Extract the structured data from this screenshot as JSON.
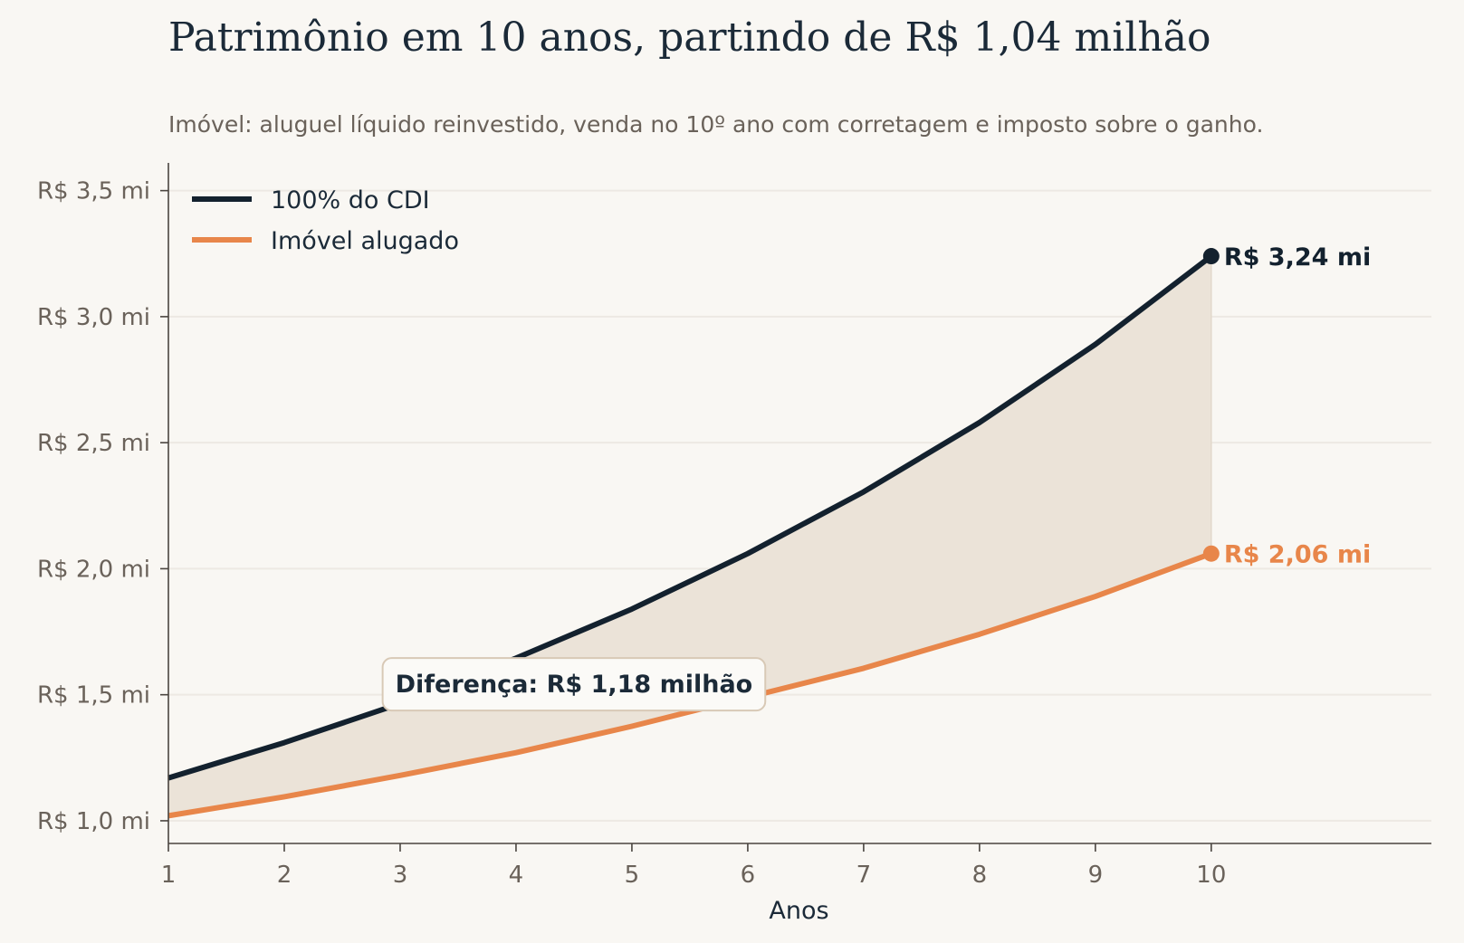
{
  "chart_data": {
    "type": "line",
    "title": "Patrimônio em 10 anos, partindo de R$ 1,04 milhão",
    "subtitle": "Imóvel: aluguel líquido reinvestido, venda no 10º ano com corretagem e imposto sobre o ganho.",
    "xlabel": "Anos",
    "ylabel": "",
    "x": [
      1,
      2,
      3,
      4,
      5,
      6,
      7,
      8,
      9,
      10
    ],
    "xlim": [
      1,
      11.9
    ],
    "ylim": [
      0.91,
      3.61
    ],
    "y_ticks": [
      1.0,
      1.5,
      2.0,
      2.5,
      3.0,
      3.5
    ],
    "y_tick_labels": [
      "R$ 1,0 mi",
      "R$ 1,5 mi",
      "R$ 2,0 mi",
      "R$ 2,5 mi",
      "R$ 3,0 mi",
      "R$ 3,5 mi"
    ],
    "x_tick_labels": [
      "1",
      "2",
      "3",
      "4",
      "5",
      "6",
      "7",
      "8",
      "9",
      "10"
    ],
    "grid": "horizontal",
    "legend_position": "top-left",
    "series": [
      {
        "name": "100% do CDI",
        "color": "#13212e",
        "values": [
          1.17,
          1.31,
          1.465,
          1.645,
          1.84,
          2.06,
          2.305,
          2.58,
          2.89,
          3.24
        ],
        "end_label": "R$ 3,24 mi"
      },
      {
        "name": "Imóvel alugado",
        "color": "#e8864a",
        "values": [
          1.02,
          1.095,
          1.18,
          1.27,
          1.375,
          1.49,
          1.605,
          1.74,
          1.89,
          2.06
        ],
        "end_label": "R$ 2,06 mi"
      }
    ],
    "fill_between_color": "#ebe3d8",
    "annotation": {
      "text": "Diferença: R$ 1,18 milhão",
      "x": 4.5,
      "y": 1.545
    }
  }
}
